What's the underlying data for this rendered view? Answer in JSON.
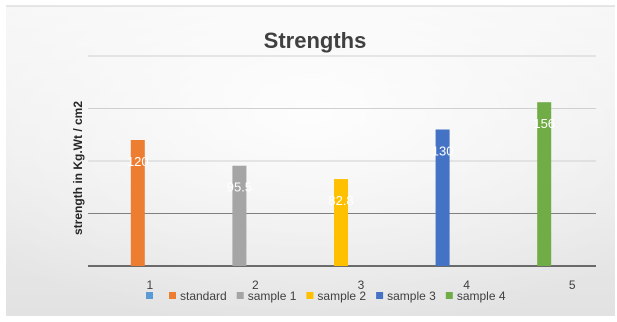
{
  "chart_data": {
    "type": "bar",
    "title": "Strengths",
    "xlabel": "",
    "ylabel": "strength in Kg.Wt / cm2",
    "ylim": [
      0,
      200
    ],
    "grid": true,
    "legend_position": "bottom",
    "categories": [
      "1",
      "2",
      "3",
      "4",
      "5"
    ],
    "series": [
      {
        "name": "",
        "color": "#5b9bd5",
        "values": [
          null,
          null,
          null,
          null,
          null
        ]
      },
      {
        "name": "standard",
        "color": "#ed7d31",
        "values": [
          120,
          null,
          null,
          null,
          null
        ]
      },
      {
        "name": "sample 1",
        "color": "#a5a5a5",
        "values": [
          null,
          95.5,
          null,
          null,
          null
        ]
      },
      {
        "name": "sample 2",
        "color": "#ffc000",
        "values": [
          null,
          null,
          82.8,
          null,
          null
        ]
      },
      {
        "name": "sample 3",
        "color": "#4472c4",
        "values": [
          null,
          null,
          null,
          130,
          null
        ]
      },
      {
        "name": "sample 4",
        "color": "#70ad47",
        "values": [
          null,
          null,
          null,
          null,
          156
        ]
      }
    ],
    "data_labels": [
      "120",
      "95.5",
      "82.8",
      "130",
      "156"
    ]
  }
}
